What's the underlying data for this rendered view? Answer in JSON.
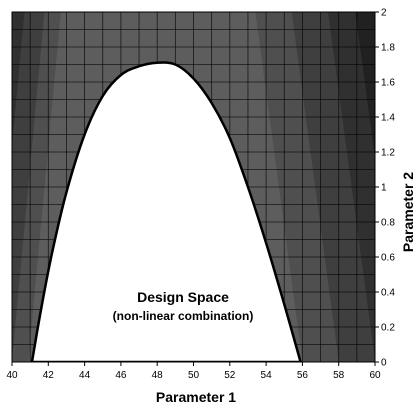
{
  "chart_data": {
    "type": "contour",
    "xlabel": "Parameter 1",
    "ylabel": "Parameter 2",
    "xlim": [
      40,
      60
    ],
    "ylim": [
      0,
      2
    ],
    "x_ticks": [
      "40",
      "42",
      "44",
      "46",
      "48",
      "50",
      "52",
      "54",
      "56",
      "58",
      "60"
    ],
    "y_ticks": [
      "0",
      "0.2",
      "0.4",
      "0.6",
      "0.8",
      "1",
      "1.2",
      "1.4",
      "1.6",
      "1.8",
      "2"
    ],
    "grid": true,
    "bands": {
      "left_lines_y0_x": [
        40.9,
        40.0,
        38.9,
        37.8,
        36.7
      ],
      "left_slope": 0.9,
      "right_lines_y0_x": [
        56.0,
        58.0,
        60.0,
        61.5,
        63.0
      ],
      "right_slope": -1.3,
      "colors": [
        "#5d5d5d",
        "#4f4f4f",
        "#3f3f3f",
        "#303030",
        "#212121",
        "#141414"
      ]
    },
    "design_space": {
      "label": "Design Space",
      "sublabel": "(non-linear combination)",
      "fill": "#ffffff",
      "boundary": [
        [
          41.1,
          0.0
        ],
        [
          41.6,
          0.3
        ],
        [
          42.2,
          0.62
        ],
        [
          43.0,
          0.97
        ],
        [
          44.0,
          1.3
        ],
        [
          45.0,
          1.52
        ],
        [
          46.0,
          1.64
        ],
        [
          47.0,
          1.69
        ],
        [
          48.0,
          1.71
        ],
        [
          49.0,
          1.7
        ],
        [
          50.0,
          1.62
        ],
        [
          51.0,
          1.48
        ],
        [
          52.0,
          1.28
        ],
        [
          53.0,
          1.0
        ],
        [
          54.0,
          0.68
        ],
        [
          55.0,
          0.33
        ],
        [
          55.9,
          0.0
        ]
      ]
    }
  }
}
